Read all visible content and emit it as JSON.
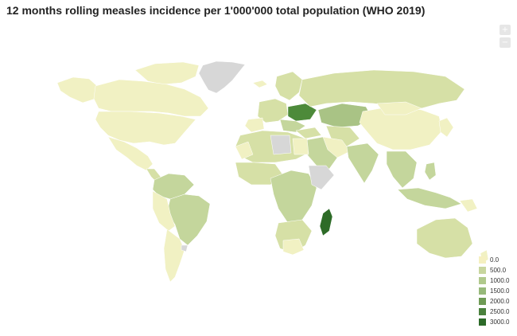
{
  "title": "12 months rolling measles incidence per 1'000'000 total population (WHO 2019)",
  "zoom": {
    "in_label": "+",
    "out_label": "−"
  },
  "colors": {
    "lowest": "#f1f1c3",
    "low": "#d6e0a6",
    "mid_low": "#c4d69c",
    "mid": "#a9c385",
    "high": "#7ca55e",
    "very_high": "#4d8a3a",
    "highest": "#2d6b27",
    "no_data": "#d7d7d7"
  },
  "legend": {
    "items": [
      {
        "label": "0.0",
        "color": "#f5f0c0"
      },
      {
        "label": "500.0",
        "color": "#c8d69e"
      },
      {
        "label": "1000.0",
        "color": "#b0c98c"
      },
      {
        "label": "1500.0",
        "color": "#97b97a"
      },
      {
        "label": "2000.0",
        "color": "#6f9b55"
      },
      {
        "label": "2500.0",
        "color": "#4a813d"
      },
      {
        "label": "3000.0",
        "color": "#2c6a28"
      }
    ]
  }
}
